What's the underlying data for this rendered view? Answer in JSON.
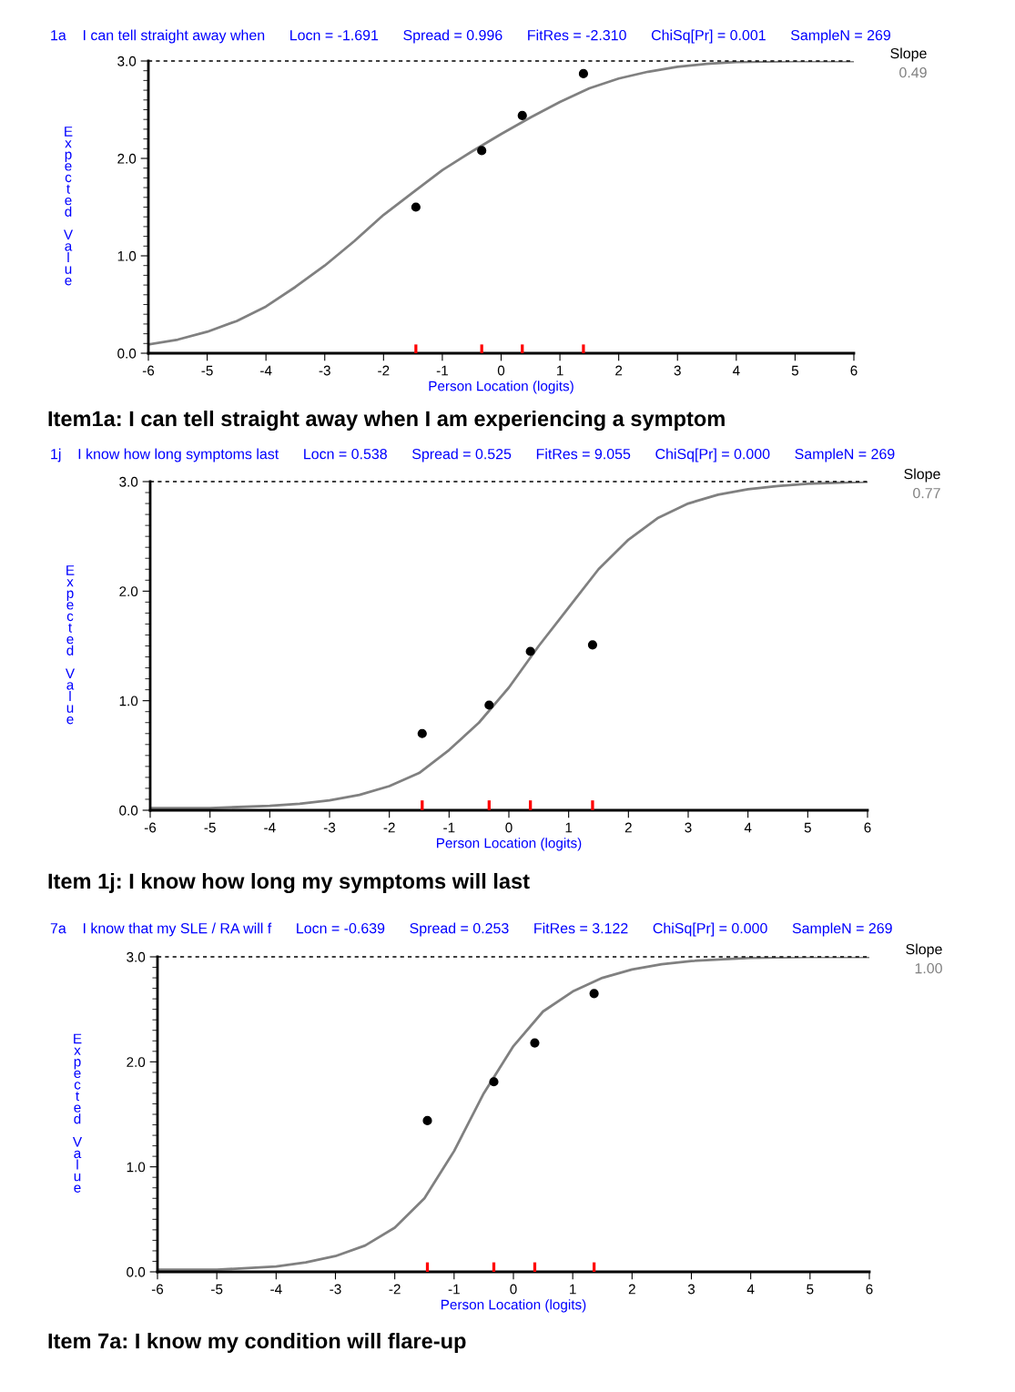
{
  "chart_data": [
    {
      "type": "line",
      "title": "1a    I can tell straight away when      Locn = -1.691      Spread = 0.996      FitRes = -2.310      ChiSq[Pr] = 0.001      SampleN = 269",
      "xlabel": "Person Location (logits)",
      "ylabel": "Expected Value",
      "series": [
        {
          "type": "line",
          "color": "#808080",
          "x": [
            -6,
            -5.5,
            -5,
            -4.5,
            -4,
            -3.5,
            -3,
            -2.5,
            -2,
            -1.5,
            -1,
            -0.5,
            0,
            0.5,
            1,
            1.5,
            2,
            2.5,
            3,
            3.5,
            4,
            5,
            6
          ],
          "values": [
            0.09,
            0.14,
            0.22,
            0.33,
            0.48,
            0.68,
            0.9,
            1.15,
            1.42,
            1.65,
            1.88,
            2.07,
            2.25,
            2.42,
            2.58,
            2.72,
            2.82,
            2.89,
            2.94,
            2.97,
            2.99,
            3.0,
            3.0
          ]
        },
        {
          "type": "scatter",
          "color": "#000000",
          "marker": "circle",
          "x": [
            -1.45,
            -0.33,
            0.36,
            1.4
          ],
          "values": [
            1.5,
            2.08,
            2.44,
            2.87
          ]
        },
        {
          "type": "bar",
          "color": "#ff0000",
          "x": [
            -1.45,
            -0.33,
            0.36,
            1.4
          ],
          "values": [
            0.09,
            0.09,
            0.09,
            0.09
          ]
        }
      ],
      "xlim": [
        -6,
        6
      ],
      "xticks": [
        -6,
        -5,
        -4,
        -3,
        -2,
        -1,
        0,
        1,
        2,
        3,
        4,
        5,
        6
      ],
      "ylim": [
        0,
        3
      ],
      "yticks": [
        {
          "value": 0,
          "label": "0.0"
        },
        {
          "value": 1,
          "label": "1.0"
        },
        {
          "value": 2,
          "label": "2.0"
        },
        {
          "value": 3,
          "label": "3.0"
        }
      ],
      "ref_lines": [
        {
          "axis": "y",
          "value": 3,
          "color": "#000000",
          "line_style": "dashed"
        }
      ],
      "annotations": [
        "Slope",
        "0.49",
        "Item1a: I can tell straight away when I am experiencing a symptom"
      ],
      "grid": false
    },
    {
      "type": "line",
      "title": "1j    I know how long symptoms last      Locn = 0.538      Spread = 0.525      FitRes = 9.055      ChiSq[Pr] = 0.000      SampleN = 269",
      "xlabel": "Person Location (logits)",
      "ylabel": "Expected Value",
      "series": [
        {
          "type": "line",
          "color": "#808080",
          "x": [
            -6,
            -5,
            -4,
            -3.5,
            -3,
            -2.5,
            -2,
            -1.5,
            -1,
            -0.5,
            0,
            0.5,
            1,
            1.5,
            2,
            2.5,
            3,
            3.5,
            4,
            4.5,
            5,
            6
          ],
          "values": [
            0.02,
            0.02,
            0.04,
            0.06,
            0.09,
            0.14,
            0.22,
            0.34,
            0.55,
            0.8,
            1.12,
            1.5,
            1.85,
            2.2,
            2.47,
            2.67,
            2.8,
            2.88,
            2.93,
            2.96,
            2.98,
            3.0
          ]
        },
        {
          "type": "scatter",
          "color": "#000000",
          "marker": "circle",
          "x": [
            -1.45,
            -0.33,
            0.36,
            1.4
          ],
          "values": [
            0.7,
            0.96,
            1.45,
            1.51
          ]
        },
        {
          "type": "bar",
          "color": "#ff0000",
          "x": [
            -1.45,
            -0.33,
            0.36,
            1.4
          ],
          "values": [
            0.09,
            0.09,
            0.09,
            0.09
          ]
        }
      ],
      "xlim": [
        -6,
        6
      ],
      "xticks": [
        -6,
        -5,
        -4,
        -3,
        -2,
        -1,
        0,
        1,
        2,
        3,
        4,
        5,
        6
      ],
      "ylim": [
        0,
        3
      ],
      "yticks": [
        {
          "value": 0,
          "label": "0.0"
        },
        {
          "value": 1,
          "label": "1.0"
        },
        {
          "value": 2,
          "label": "2.0"
        },
        {
          "value": 3,
          "label": "3.0"
        }
      ],
      "ref_lines": [
        {
          "axis": "y",
          "value": 3,
          "color": "#000000",
          "line_style": "dashed"
        }
      ],
      "annotations": [
        "Slope",
        "0.77",
        "Item 1j: I know how long my symptoms will last"
      ],
      "grid": false
    },
    {
      "type": "line",
      "title": "7a    I know that my SLE / RA will f      Locn = -0.639      Spread = 0.253      FitRes = 3.122      ChiSq[Pr] = 0.000      SampleN = 269",
      "xlabel": "Person Location (logits)",
      "ylabel": "Expected Value",
      "series": [
        {
          "type": "line",
          "color": "#808080",
          "x": [
            -6,
            -5,
            -4,
            -3.5,
            -3,
            -2.5,
            -2,
            -1.5,
            -1,
            -0.5,
            0,
            0.5,
            1,
            1.5,
            2,
            2.5,
            3,
            4,
            5,
            6
          ],
          "values": [
            0.02,
            0.02,
            0.05,
            0.09,
            0.15,
            0.25,
            0.42,
            0.7,
            1.15,
            1.7,
            2.15,
            2.48,
            2.67,
            2.8,
            2.88,
            2.93,
            2.96,
            2.99,
            3.0,
            3.0
          ]
        },
        {
          "type": "scatter",
          "color": "#000000",
          "marker": "circle",
          "x": [
            -1.45,
            -0.33,
            0.36,
            1.36
          ],
          "values": [
            1.44,
            1.81,
            2.18,
            2.65
          ]
        },
        {
          "type": "bar",
          "color": "#ff0000",
          "x": [
            -1.45,
            -0.33,
            0.36,
            1.36
          ],
          "values": [
            0.09,
            0.09,
            0.09,
            0.09
          ]
        }
      ],
      "xlim": [
        -6,
        6
      ],
      "xticks": [
        -6,
        -5,
        -4,
        -3,
        -2,
        -1,
        0,
        1,
        2,
        3,
        4,
        5,
        6
      ],
      "ylim": [
        0,
        3
      ],
      "yticks": [
        {
          "value": 0,
          "label": "0.0"
        },
        {
          "value": 1,
          "label": "1.0"
        },
        {
          "value": 2,
          "label": "2.0"
        },
        {
          "value": 3,
          "label": "3.0"
        }
      ],
      "ref_lines": [
        {
          "axis": "y",
          "value": 3,
          "color": "#000000",
          "line_style": "dashed"
        }
      ],
      "annotations": [
        "Slope",
        "1.00",
        "Item 7a: I know my condition will flare-up"
      ],
      "grid": false
    }
  ]
}
